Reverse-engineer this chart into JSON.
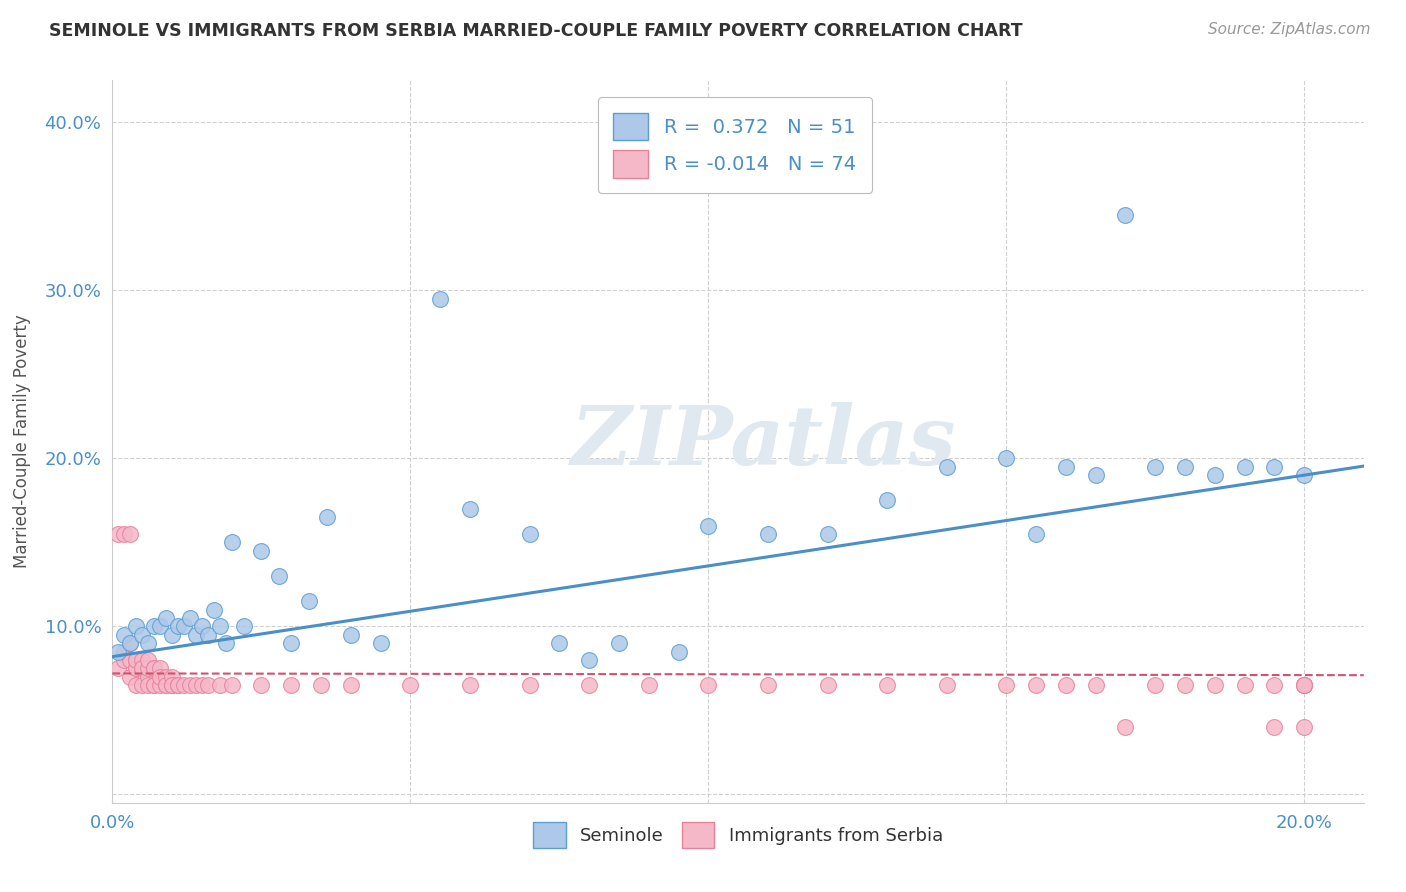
{
  "title": "SEMINOLE VS IMMIGRANTS FROM SERBIA MARRIED-COUPLE FAMILY POVERTY CORRELATION CHART",
  "source": "Source: ZipAtlas.com",
  "ylabel": "Married-Couple Family Poverty",
  "xlabel": "",
  "xlim": [
    0.0,
    0.21
  ],
  "ylim": [
    -0.005,
    0.425
  ],
  "xticks": [
    0.0,
    0.05,
    0.1,
    0.15,
    0.2
  ],
  "yticks": [
    0.0,
    0.1,
    0.2,
    0.3,
    0.4
  ],
  "seminole_R": 0.372,
  "seminole_N": 51,
  "serbia_R": -0.014,
  "serbia_N": 74,
  "seminole_color": "#adc8e8",
  "serbia_color": "#f5b8c8",
  "seminole_edge_color": "#5a9fd4",
  "serbia_edge_color": "#e8829a",
  "seminole_line_color": "#4a8fc8",
  "serbia_line_color": "#d45070",
  "watermark": "ZIPatlas",
  "background_color": "#ffffff",
  "seminole_x": [
    0.001,
    0.002,
    0.003,
    0.004,
    0.005,
    0.006,
    0.007,
    0.008,
    0.009,
    0.01,
    0.011,
    0.012,
    0.013,
    0.014,
    0.015,
    0.016,
    0.017,
    0.018,
    0.019,
    0.02,
    0.022,
    0.025,
    0.028,
    0.03,
    0.033,
    0.036,
    0.04,
    0.045,
    0.055,
    0.06,
    0.07,
    0.075,
    0.08,
    0.085,
    0.095,
    0.1,
    0.11,
    0.12,
    0.13,
    0.14,
    0.15,
    0.155,
    0.16,
    0.165,
    0.17,
    0.175,
    0.18,
    0.185,
    0.19,
    0.195,
    0.2
  ],
  "seminole_y": [
    0.085,
    0.095,
    0.09,
    0.1,
    0.095,
    0.09,
    0.1,
    0.1,
    0.105,
    0.095,
    0.1,
    0.1,
    0.105,
    0.095,
    0.1,
    0.095,
    0.11,
    0.1,
    0.09,
    0.15,
    0.1,
    0.145,
    0.13,
    0.09,
    0.115,
    0.165,
    0.095,
    0.09,
    0.295,
    0.17,
    0.155,
    0.09,
    0.08,
    0.09,
    0.085,
    0.16,
    0.155,
    0.155,
    0.175,
    0.195,
    0.2,
    0.155,
    0.195,
    0.19,
    0.345,
    0.195,
    0.195,
    0.19,
    0.195,
    0.195,
    0.19
  ],
  "serbia_x": [
    0.001,
    0.001,
    0.002,
    0.002,
    0.002,
    0.003,
    0.003,
    0.003,
    0.003,
    0.004,
    0.004,
    0.004,
    0.004,
    0.004,
    0.005,
    0.005,
    0.005,
    0.005,
    0.006,
    0.006,
    0.006,
    0.006,
    0.007,
    0.007,
    0.007,
    0.007,
    0.008,
    0.008,
    0.008,
    0.009,
    0.009,
    0.009,
    0.01,
    0.01,
    0.01,
    0.011,
    0.011,
    0.012,
    0.013,
    0.014,
    0.015,
    0.016,
    0.018,
    0.02,
    0.025,
    0.03,
    0.035,
    0.04,
    0.05,
    0.06,
    0.07,
    0.08,
    0.09,
    0.1,
    0.11,
    0.12,
    0.13,
    0.14,
    0.15,
    0.155,
    0.16,
    0.165,
    0.17,
    0.175,
    0.18,
    0.185,
    0.19,
    0.195,
    0.195,
    0.2,
    0.2,
    0.2,
    0.2,
    0.2
  ],
  "serbia_y": [
    0.075,
    0.155,
    0.08,
    0.085,
    0.155,
    0.07,
    0.08,
    0.09,
    0.155,
    0.075,
    0.08,
    0.075,
    0.08,
    0.065,
    0.075,
    0.08,
    0.065,
    0.075,
    0.07,
    0.075,
    0.08,
    0.065,
    0.075,
    0.075,
    0.065,
    0.065,
    0.075,
    0.065,
    0.07,
    0.065,
    0.07,
    0.065,
    0.065,
    0.07,
    0.065,
    0.065,
    0.065,
    0.065,
    0.065,
    0.065,
    0.065,
    0.065,
    0.065,
    0.065,
    0.065,
    0.065,
    0.065,
    0.065,
    0.065,
    0.065,
    0.065,
    0.065,
    0.065,
    0.065,
    0.065,
    0.065,
    0.065,
    0.065,
    0.065,
    0.065,
    0.065,
    0.065,
    0.04,
    0.065,
    0.065,
    0.065,
    0.065,
    0.065,
    0.04,
    0.065,
    0.065,
    0.065,
    0.065,
    0.04
  ]
}
